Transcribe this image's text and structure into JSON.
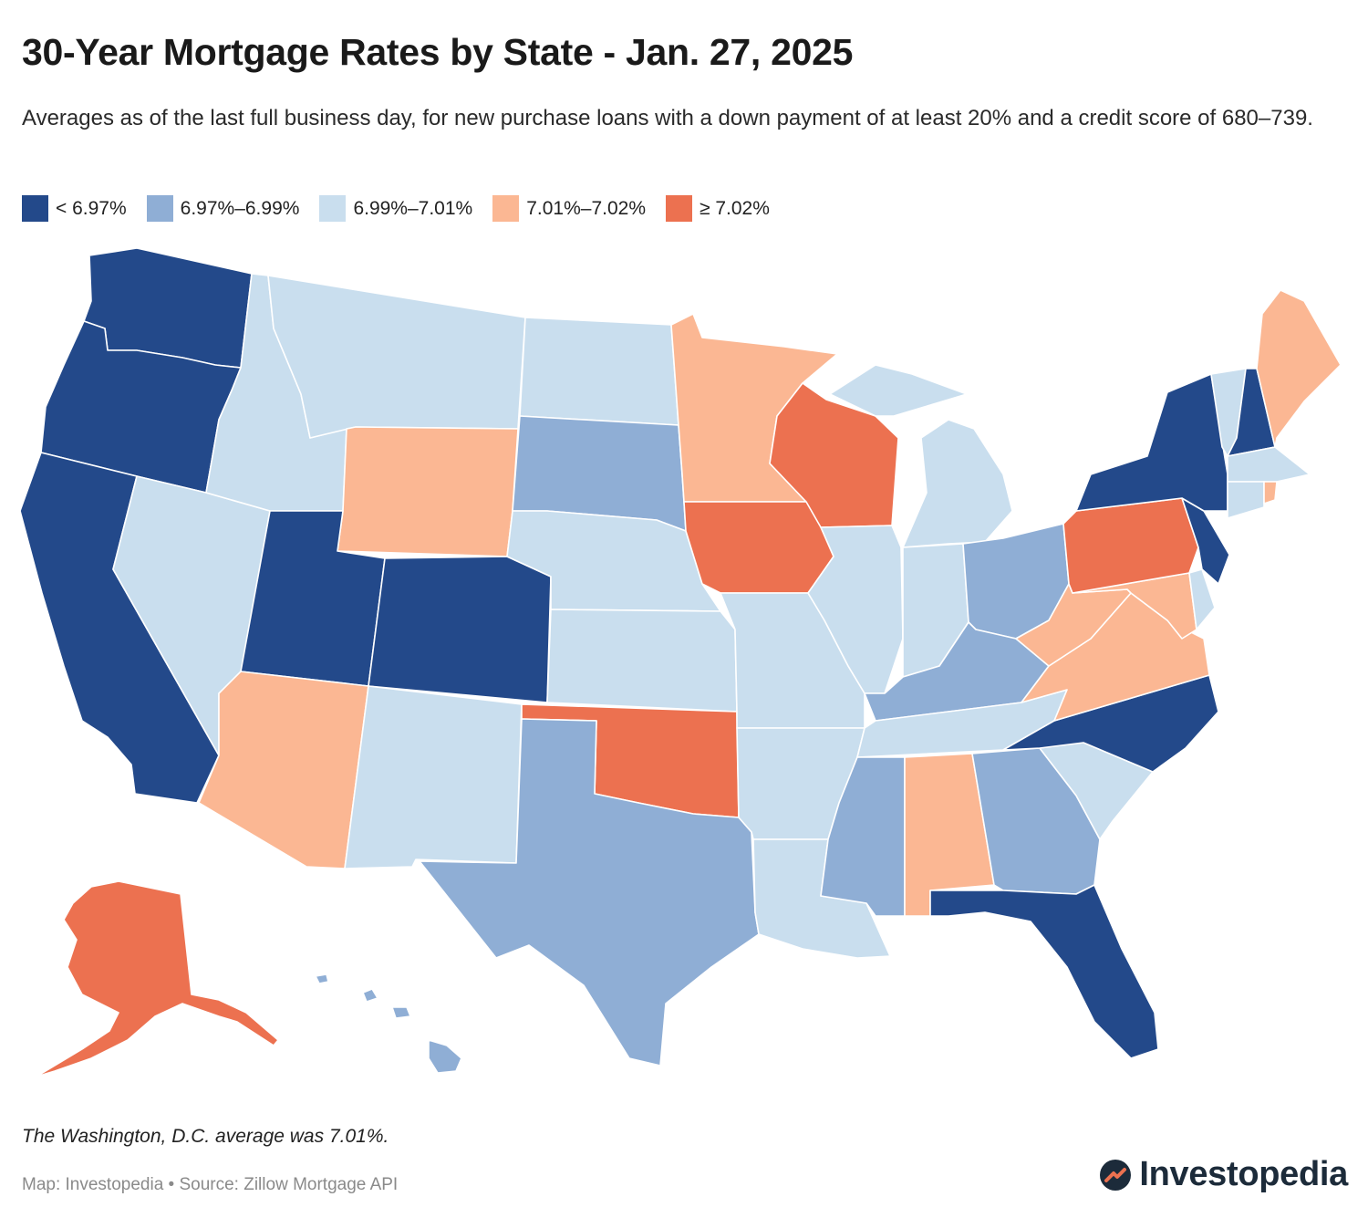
{
  "title": "30-Year Mortgage Rates by State - Jan. 27, 2025",
  "subtitle": "Averages as of the last full business day, for new purchase loans with a down payment of at least 20% and a credit score of 680–739.",
  "legend": [
    {
      "label": "< 6.97%",
      "color": "#23498a"
    },
    {
      "label": "6.97%–6.99%",
      "color": "#8faed5"
    },
    {
      "label": "6.99%–7.01%",
      "color": "#c9deee"
    },
    {
      "label": "7.01%–7.02%",
      "color": "#fbb793"
    },
    {
      "label": "≥ 7.02%",
      "color": "#ec7150"
    }
  ],
  "states": [
    {
      "code": "WA",
      "name": "Washington",
      "bin": 0
    },
    {
      "code": "OR",
      "name": "Oregon",
      "bin": 0
    },
    {
      "code": "CA",
      "name": "California",
      "bin": 0
    },
    {
      "code": "NV",
      "name": "Nevada",
      "bin": 2
    },
    {
      "code": "ID",
      "name": "Idaho",
      "bin": 2
    },
    {
      "code": "MT",
      "name": "Montana",
      "bin": 2
    },
    {
      "code": "WY",
      "name": "Wyoming",
      "bin": 3
    },
    {
      "code": "UT",
      "name": "Utah",
      "bin": 0
    },
    {
      "code": "CO",
      "name": "Colorado",
      "bin": 0
    },
    {
      "code": "AZ",
      "name": "Arizona",
      "bin": 3
    },
    {
      "code": "NM",
      "name": "New Mexico",
      "bin": 2
    },
    {
      "code": "ND",
      "name": "North Dakota",
      "bin": 2
    },
    {
      "code": "SD",
      "name": "South Dakota",
      "bin": 1
    },
    {
      "code": "NE",
      "name": "Nebraska",
      "bin": 2
    },
    {
      "code": "KS",
      "name": "Kansas",
      "bin": 2
    },
    {
      "code": "OK",
      "name": "Oklahoma",
      "bin": 4
    },
    {
      "code": "TX",
      "name": "Texas",
      "bin": 1
    },
    {
      "code": "MN",
      "name": "Minnesota",
      "bin": 3
    },
    {
      "code": "IA",
      "name": "Iowa",
      "bin": 4
    },
    {
      "code": "MO",
      "name": "Missouri",
      "bin": 2
    },
    {
      "code": "AR",
      "name": "Arkansas",
      "bin": 2
    },
    {
      "code": "LA",
      "name": "Louisiana",
      "bin": 2
    },
    {
      "code": "WI",
      "name": "Wisconsin",
      "bin": 4
    },
    {
      "code": "IL",
      "name": "Illinois",
      "bin": 2
    },
    {
      "code": "MI",
      "name": "Michigan",
      "bin": 2
    },
    {
      "code": "IN",
      "name": "Indiana",
      "bin": 2
    },
    {
      "code": "OH",
      "name": "Ohio",
      "bin": 1
    },
    {
      "code": "KY",
      "name": "Kentucky",
      "bin": 1
    },
    {
      "code": "TN",
      "name": "Tennessee",
      "bin": 2
    },
    {
      "code": "MS",
      "name": "Mississippi",
      "bin": 1
    },
    {
      "code": "AL",
      "name": "Alabama",
      "bin": 3
    },
    {
      "code": "GA",
      "name": "Georgia",
      "bin": 1
    },
    {
      "code": "FL",
      "name": "Florida",
      "bin": 0
    },
    {
      "code": "SC",
      "name": "South Carolina",
      "bin": 2
    },
    {
      "code": "NC",
      "name": "North Carolina",
      "bin": 0
    },
    {
      "code": "VA",
      "name": "Virginia",
      "bin": 3
    },
    {
      "code": "WV",
      "name": "West Virginia",
      "bin": 3
    },
    {
      "code": "MD",
      "name": "Maryland",
      "bin": 3
    },
    {
      "code": "DE",
      "name": "Delaware",
      "bin": 2
    },
    {
      "code": "PA",
      "name": "Pennsylvania",
      "bin": 4
    },
    {
      "code": "NJ",
      "name": "New Jersey",
      "bin": 0
    },
    {
      "code": "NY",
      "name": "New York",
      "bin": 0
    },
    {
      "code": "CT",
      "name": "Connecticut",
      "bin": 2
    },
    {
      "code": "RI",
      "name": "Rhode Island",
      "bin": 3
    },
    {
      "code": "MA",
      "name": "Massachusetts",
      "bin": 2
    },
    {
      "code": "VT",
      "name": "Vermont",
      "bin": 2
    },
    {
      "code": "NH",
      "name": "New Hampshire",
      "bin": 0
    },
    {
      "code": "ME",
      "name": "Maine",
      "bin": 3
    },
    {
      "code": "AK",
      "name": "Alaska",
      "bin": 4
    },
    {
      "code": "HI",
      "name": "Hawaii",
      "bin": 1
    }
  ],
  "note": "The Washington, D.C. average was 7.01%.",
  "source": "Map: Investopedia • Source: Zillow Mortgage API",
  "brand": "Investopedia"
}
